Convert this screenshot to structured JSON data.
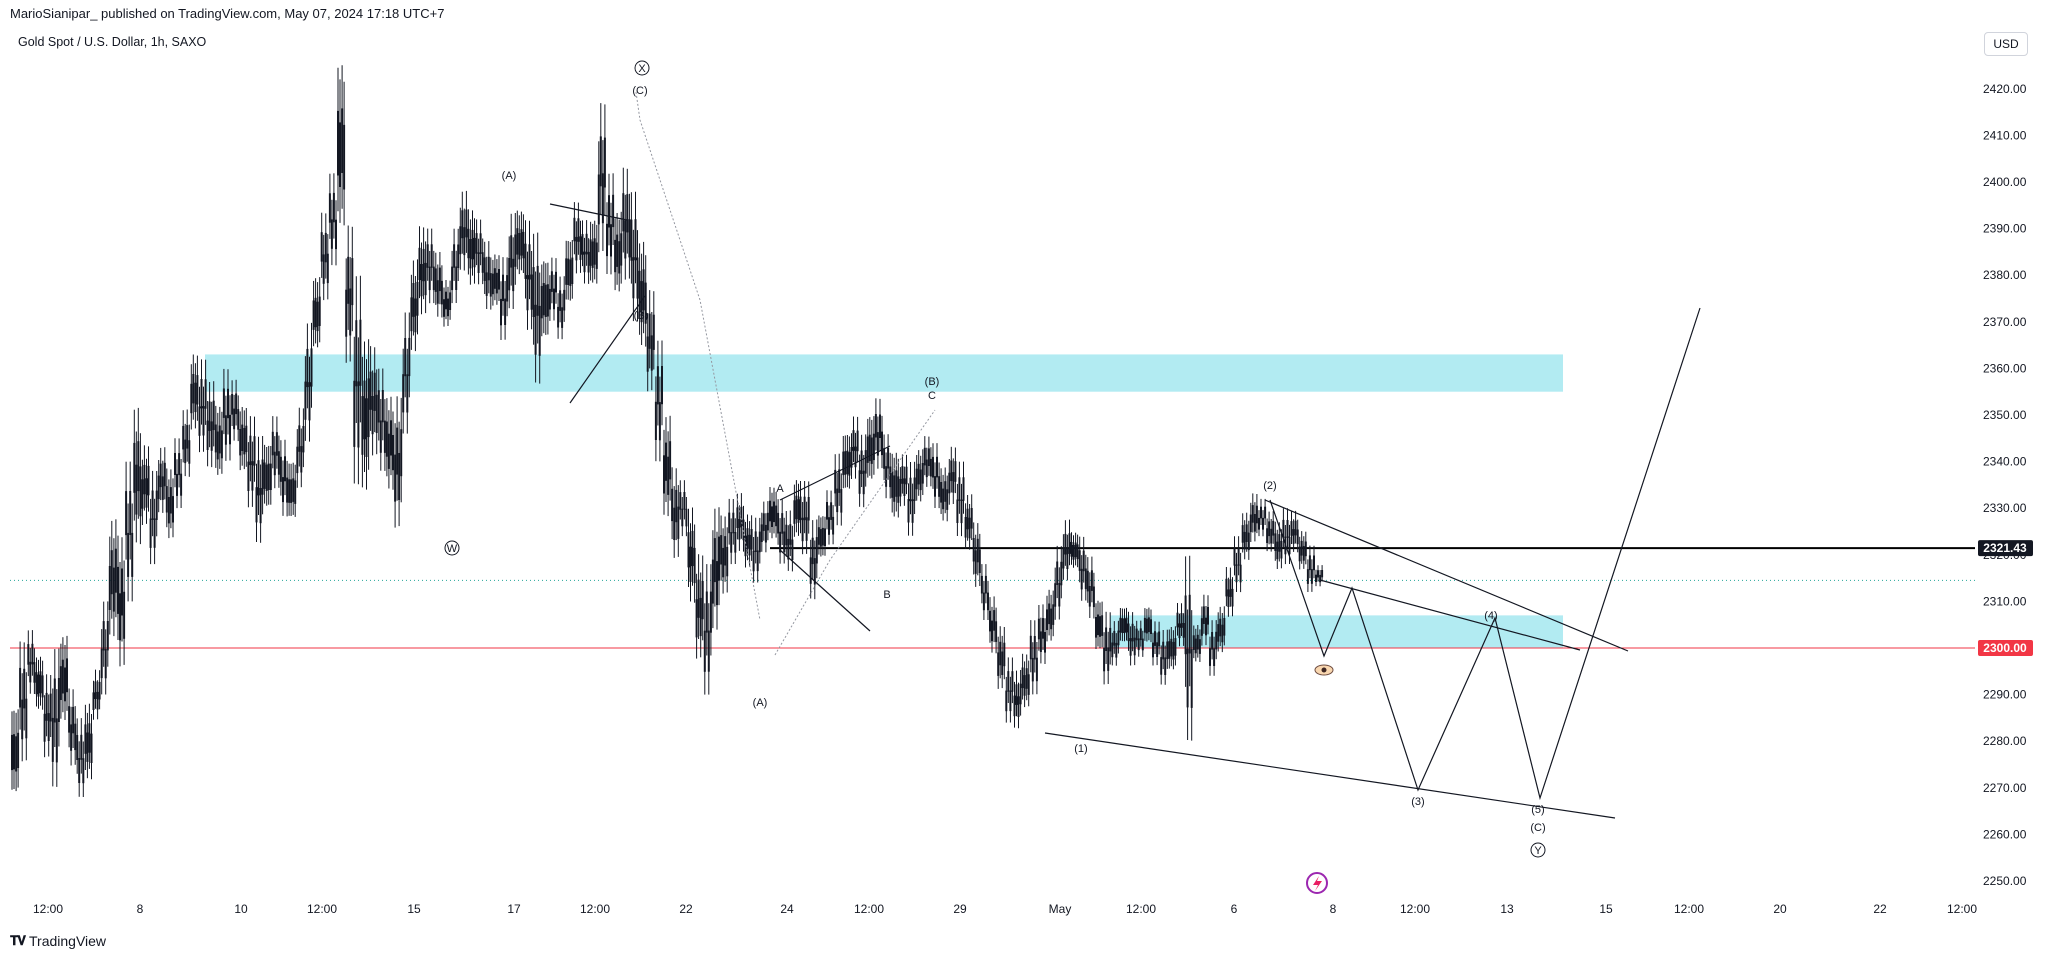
{
  "header": {
    "published": "MarioSianipar_ published on TradingView.com, May 07, 2024 17:18 UTC+7",
    "symbol": "Gold Spot / U.S. Dollar, 1h, SAXO",
    "currency": "USD",
    "brand": "TradingView"
  },
  "colors": {
    "candle": "#131722",
    "zone": "#b2ebf2",
    "horizontal_line_red": "#f23645",
    "horizontal_line_black": "#000000",
    "label_red_bg": "#f23645",
    "label_black_bg": "#131722",
    "dotted_current": "#26a69a"
  },
  "chart_data": {
    "type": "candlestick",
    "instrument": "Gold Spot / U.S. Dollar",
    "interval": "1h",
    "ylim": [
      2245,
      2431
    ],
    "y_ticks": [
      2250,
      2260,
      2270,
      2280,
      2290,
      2300,
      2310,
      2320,
      2330,
      2340,
      2350,
      2360,
      2370,
      2380,
      2390,
      2400,
      2410,
      2420
    ],
    "y_tick_labels": [
      "2250.00",
      "2260.00",
      "2270.00",
      "2280.00",
      "2290.00",
      "2300.00",
      "2310.00",
      "2320.00",
      "2330.00",
      "2340.00",
      "2350.00",
      "2360.00",
      "2370.00",
      "2380.00",
      "2390.00",
      "2400.00",
      "2410.00",
      "2420.00"
    ],
    "x_tick_labels": [
      "12:00",
      "8",
      "10",
      "12:00",
      "15",
      "17",
      "12:00",
      "22",
      "24",
      "12:00",
      "29",
      "May",
      "12:00",
      "6",
      "8",
      "12:00",
      "13",
      "15",
      "12:00",
      "20",
      "22",
      "12:00"
    ],
    "price_labels": [
      {
        "value": 2321.43,
        "text": "2321.43",
        "style": "black"
      },
      {
        "value": 2300.0,
        "text": "2300.00",
        "style": "red"
      }
    ],
    "zones": [
      {
        "from": 2355,
        "to": 2363
      },
      {
        "from": 2300,
        "to": 2307
      }
    ],
    "wave_labels": [
      "X",
      "(C)",
      "(A)",
      "(B)",
      "W",
      "(B)",
      "C",
      "A",
      "B",
      "(A)",
      "(2)",
      "(1)",
      "(3)",
      "(4)",
      "(5)",
      "(C)",
      "Y"
    ],
    "ohlc_path": [
      [
        2266,
        2290
      ],
      [
        2275,
        2302
      ],
      [
        2290,
        2304
      ],
      [
        2285,
        2300
      ],
      [
        2276,
        2295
      ],
      [
        2270,
        2300
      ],
      [
        2282,
        2305
      ],
      [
        2274,
        2292
      ],
      [
        2268,
        2285
      ],
      [
        2270,
        2290
      ],
      [
        2284,
        2296
      ],
      [
        2290,
        2310
      ],
      [
        2300,
        2330
      ],
      [
        2294,
        2326
      ],
      [
        2310,
        2340
      ],
      [
        2320,
        2354
      ],
      [
        2325,
        2345
      ],
      [
        2318,
        2338
      ],
      [
        2328,
        2344
      ],
      [
        2322,
        2340
      ],
      [
        2330,
        2345
      ],
      [
        2336,
        2352
      ],
      [
        2345,
        2365
      ],
      [
        2342,
        2362
      ],
      [
        2338,
        2358
      ],
      [
        2335,
        2354
      ],
      [
        2340,
        2360
      ],
      [
        2344,
        2358
      ],
      [
        2336,
        2354
      ],
      [
        2330,
        2350
      ],
      [
        2322,
        2346
      ],
      [
        2328,
        2346
      ],
      [
        2334,
        2350
      ],
      [
        2328,
        2345
      ],
      [
        2326,
        2342
      ],
      [
        2334,
        2352
      ],
      [
        2344,
        2370
      ],
      [
        2362,
        2382
      ],
      [
        2374,
        2394
      ],
      [
        2382,
        2402
      ],
      [
        2386,
        2430
      ],
      [
        2360,
        2392
      ],
      [
        2335,
        2380
      ],
      [
        2330,
        2370
      ],
      [
        2340,
        2366
      ],
      [
        2338,
        2360
      ],
      [
        2332,
        2356
      ],
      [
        2324,
        2356
      ],
      [
        2346,
        2372
      ],
      [
        2362,
        2385
      ],
      [
        2370,
        2392
      ],
      [
        2374,
        2390
      ],
      [
        2370,
        2386
      ],
      [
        2368,
        2380
      ],
      [
        2374,
        2390
      ],
      [
        2380,
        2399
      ],
      [
        2376,
        2396
      ],
      [
        2378,
        2392
      ],
      [
        2372,
        2388
      ],
      [
        2372,
        2386
      ],
      [
        2366,
        2384
      ],
      [
        2372,
        2394
      ],
      [
        2378,
        2396
      ],
      [
        2368,
        2392
      ],
      [
        2356,
        2390
      ],
      [
        2364,
        2386
      ],
      [
        2370,
        2384
      ],
      [
        2366,
        2380
      ],
      [
        2372,
        2390
      ],
      [
        2380,
        2396
      ],
      [
        2378,
        2392
      ],
      [
        2376,
        2394
      ],
      [
        2384,
        2418
      ],
      [
        2380,
        2402
      ],
      [
        2374,
        2396
      ],
      [
        2378,
        2404
      ],
      [
        2370,
        2398
      ],
      [
        2362,
        2390
      ],
      [
        2354,
        2378
      ],
      [
        2340,
        2366
      ],
      [
        2326,
        2352
      ],
      [
        2318,
        2340
      ],
      [
        2324,
        2336
      ],
      [
        2308,
        2332
      ],
      [
        2296,
        2322
      ],
      [
        2290,
        2318
      ],
      [
        2302,
        2332
      ],
      [
        2310,
        2330
      ],
      [
        2318,
        2332
      ],
      [
        2320,
        2334
      ],
      [
        2316,
        2330
      ],
      [
        2314,
        2328
      ],
      [
        2320,
        2332
      ],
      [
        2322,
        2336
      ],
      [
        2318,
        2332
      ],
      [
        2316,
        2330
      ],
      [
        2322,
        2338
      ],
      [
        2320,
        2336
      ],
      [
        2310,
        2328
      ],
      [
        2318,
        2330
      ],
      [
        2322,
        2334
      ],
      [
        2326,
        2342
      ],
      [
        2332,
        2348
      ],
      [
        2336,
        2350
      ],
      [
        2330,
        2346
      ],
      [
        2334,
        2352
      ],
      [
        2338,
        2354
      ],
      [
        2332,
        2346
      ],
      [
        2326,
        2344
      ],
      [
        2330,
        2342
      ],
      [
        2324,
        2340
      ],
      [
        2330,
        2344
      ],
      [
        2334,
        2346
      ],
      [
        2330,
        2344
      ],
      [
        2326,
        2340
      ],
      [
        2330,
        2344
      ],
      [
        2324,
        2340
      ],
      [
        2320,
        2334
      ],
      [
        2312,
        2328
      ],
      [
        2306,
        2318
      ],
      [
        2298,
        2312
      ],
      [
        2290,
        2306
      ],
      [
        2284,
        2298
      ],
      [
        2282,
        2296
      ],
      [
        2286,
        2300
      ],
      [
        2290,
        2306
      ],
      [
        2296,
        2310
      ],
      [
        2300,
        2314
      ],
      [
        2306,
        2322
      ],
      [
        2314,
        2328
      ],
      [
        2316,
        2326
      ],
      [
        2310,
        2324
      ],
      [
        2306,
        2320
      ],
      [
        2298,
        2312
      ],
      [
        2292,
        2308
      ],
      [
        2296,
        2306
      ],
      [
        2300,
        2310
      ],
      [
        2296,
        2308
      ],
      [
        2298,
        2306
      ],
      [
        2300,
        2310
      ],
      [
        2296,
        2306
      ],
      [
        2292,
        2304
      ],
      [
        2294,
        2306
      ],
      [
        2300,
        2310
      ],
      [
        2280,
        2320
      ],
      [
        2296,
        2306
      ],
      [
        2300,
        2312
      ],
      [
        2294,
        2306
      ],
      [
        2298,
        2310
      ],
      [
        2306,
        2318
      ],
      [
        2312,
        2324
      ],
      [
        2318,
        2330
      ],
      [
        2322,
        2334
      ],
      [
        2324,
        2332
      ],
      [
        2320,
        2330
      ],
      [
        2316,
        2328
      ],
      [
        2318,
        2330
      ],
      [
        2320,
        2330
      ],
      [
        2316,
        2326
      ],
      [
        2312,
        2322
      ],
      [
        2313,
        2318
      ]
    ]
  }
}
